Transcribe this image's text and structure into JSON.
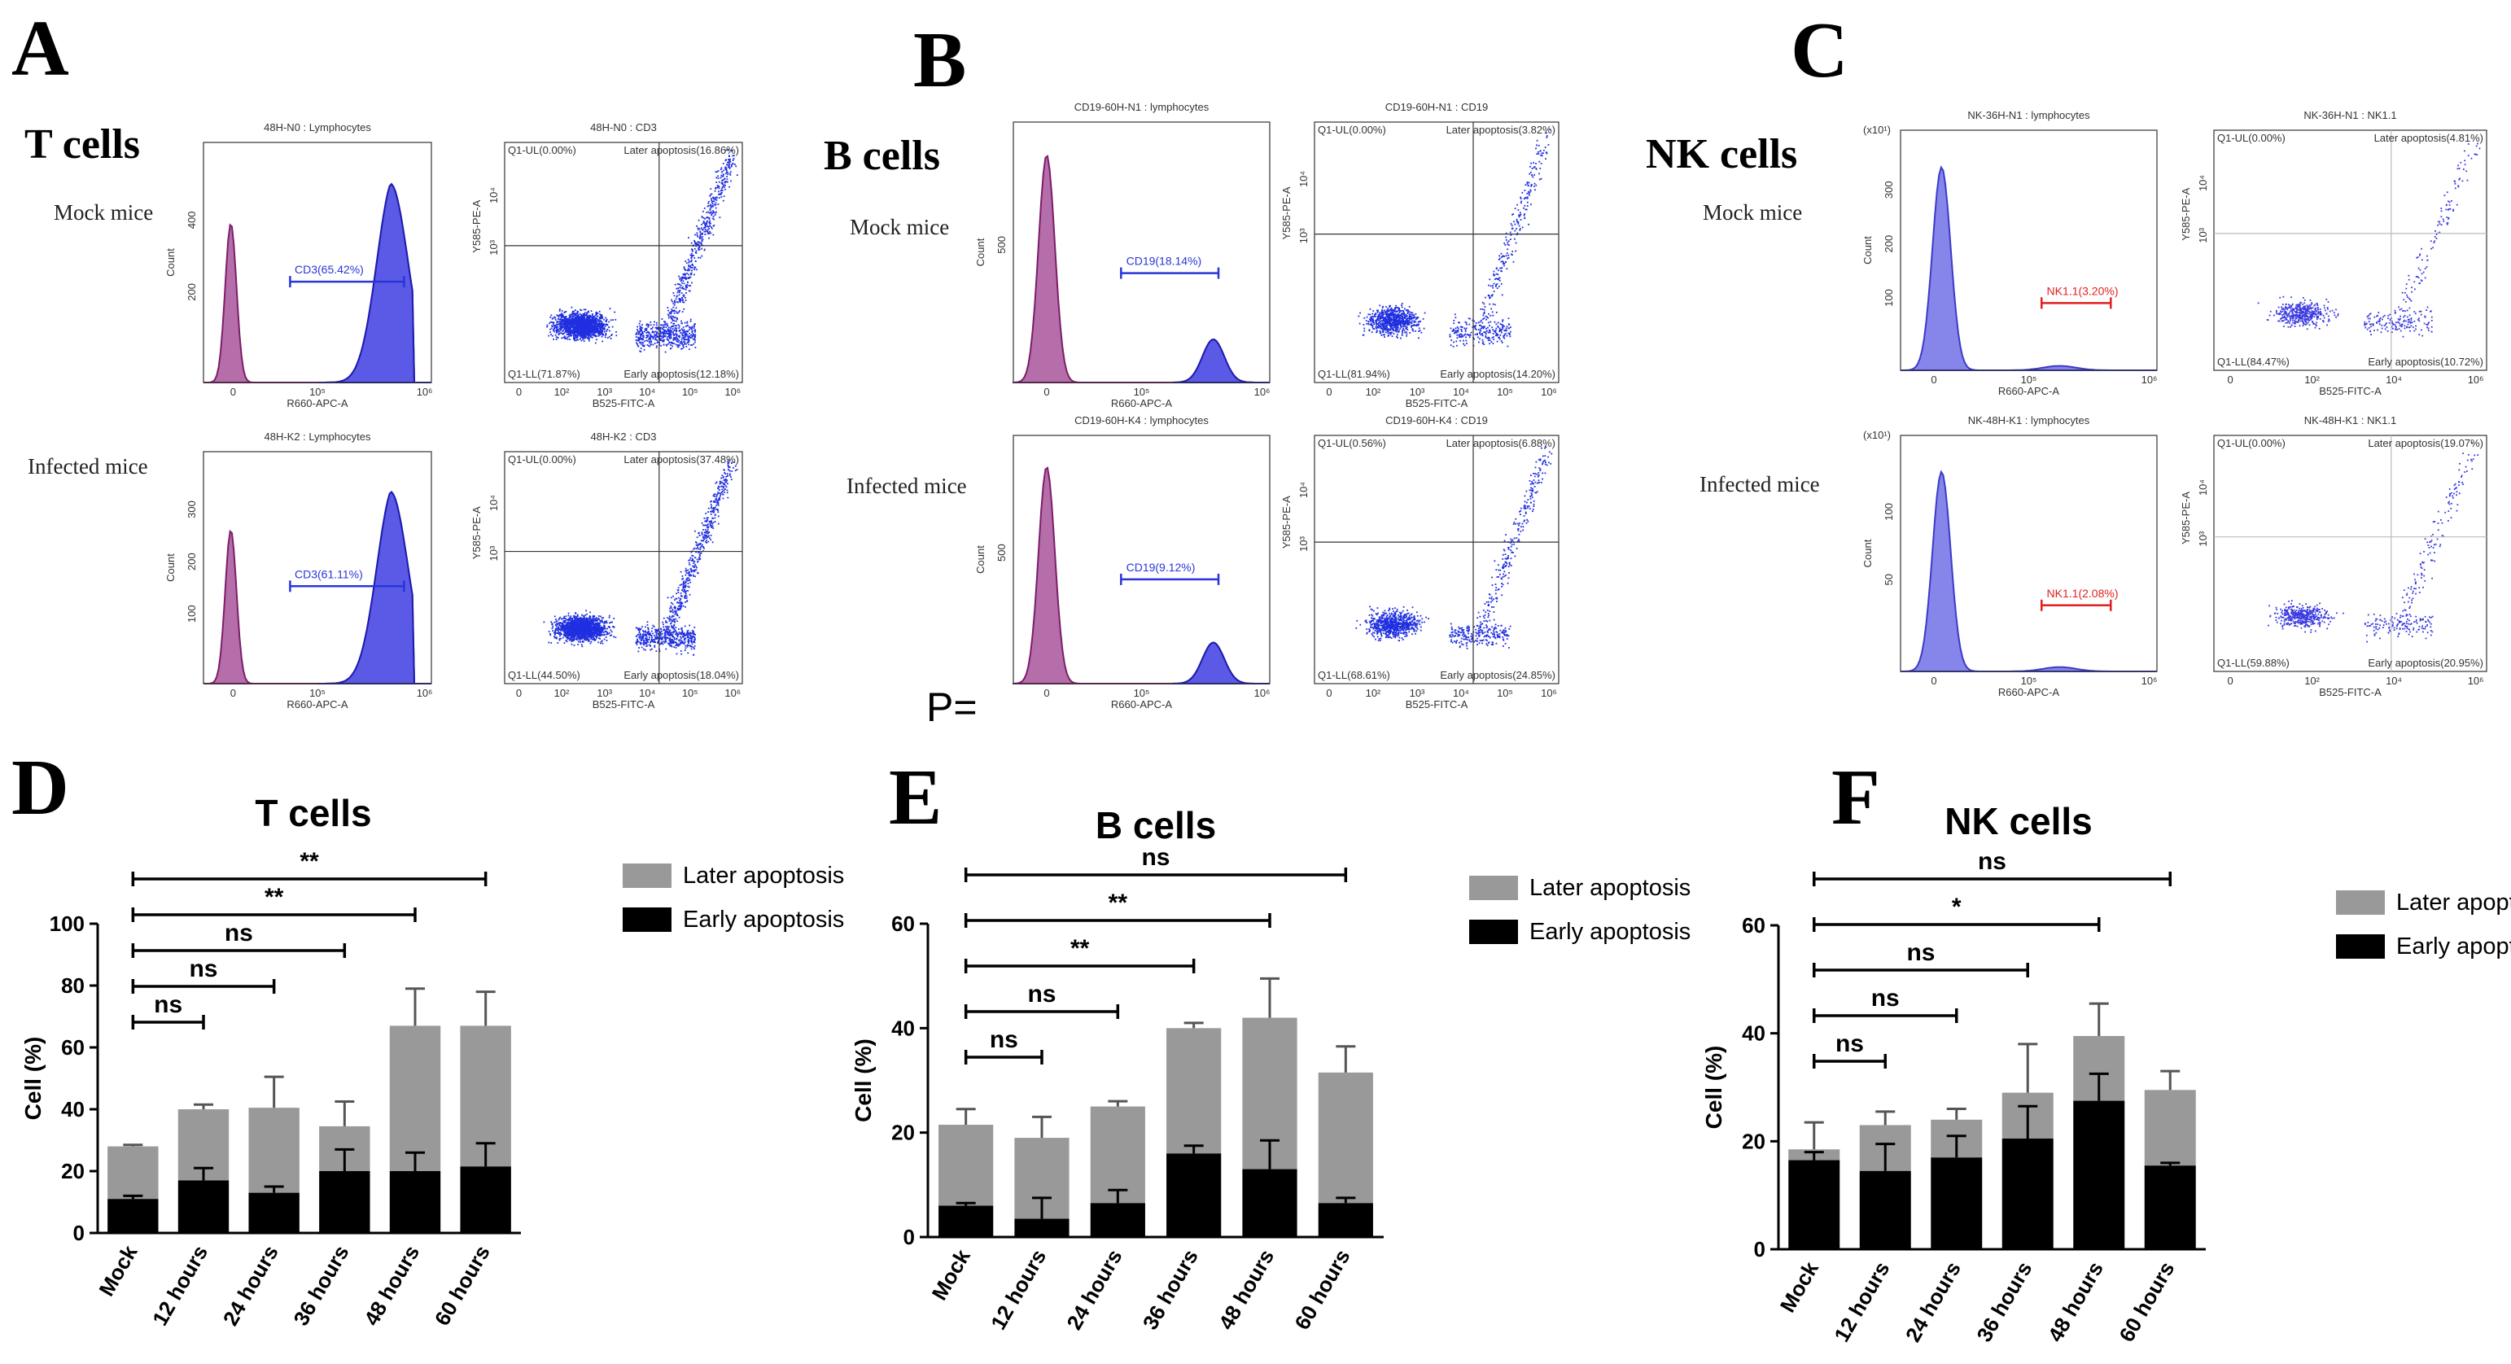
{
  "panel_labels": [
    "A",
    "B",
    "C",
    "D",
    "E",
    "F"
  ],
  "flow_titles": [
    "T cells",
    "B cells",
    "NK cells"
  ],
  "group_labels": [
    "Mock mice",
    "Infected mice"
  ],
  "stray_text": "P=",
  "flow": [
    {
      "cell": "T cells",
      "rows": [
        {
          "hist": {
            "title": "48H-N0 : Lymphocytes",
            "ylabel": "Count",
            "xlabel": "R660-APC-A",
            "gate": "CD3(65.42%)",
            "yticks": [
              "400",
              "200"
            ],
            "xticks": [
              "0",
              "10⁵",
              "10⁶"
            ]
          },
          "dot": {
            "title": "48H-N0 : CD3",
            "ylabel": "Y585-PE-A",
            "xlabel": "B525-FITC-A",
            "ul": "Q1-UL(0.00%)",
            "ur": "Later apoptosis(16.86%)",
            "ll": "Q1-LL(71.87%)",
            "lr": "Early apoptosis(12.18%)",
            "yticks": [
              "10⁴",
              "10³"
            ],
            "xticks": [
              "0",
              "10²",
              "10³",
              "10⁴",
              "10⁵",
              "10⁶"
            ]
          }
        },
        {
          "hist": {
            "title": "48H-K2 : Lymphocytes",
            "ylabel": "Count",
            "xlabel": "R660-APC-A",
            "gate": "CD3(61.11%)",
            "yticks": [
              "300",
              "200",
              "100"
            ],
            "xticks": [
              "0",
              "10⁵",
              "10⁶"
            ]
          },
          "dot": {
            "title": "48H-K2 : CD3",
            "ylabel": "Y585-PE-A",
            "xlabel": "B525-FITC-A",
            "ul": "Q1-UL(0.00%)",
            "ur": "Later apoptosis(37.48%)",
            "ll": "Q1-LL(44.50%)",
            "lr": "Early apoptosis(18.04%)",
            "yticks": [
              "10⁴",
              "10³"
            ],
            "xticks": [
              "0",
              "10²",
              "10³",
              "10⁴",
              "10⁵",
              "10⁶"
            ]
          }
        }
      ]
    },
    {
      "cell": "B cells",
      "rows": [
        {
          "hist": {
            "title": "CD19-60H-N1 : lymphocytes",
            "ylabel": "Count",
            "xlabel": "R660-APC-A",
            "gate": "CD19(18.14%)",
            "yticks": [
              "500"
            ],
            "xticks": [
              "0",
              "10⁵",
              "10⁶"
            ]
          },
          "dot": {
            "title": "CD19-60H-N1 : CD19",
            "ylabel": "Y585-PE-A",
            "xlabel": "B525-FITC-A",
            "ul": "Q1-UL(0.00%)",
            "ur": "Later apoptosis(3.82%)",
            "ll": "Q1-LL(81.94%)",
            "lr": "Early apoptosis(14.20%)",
            "yticks": [
              "10⁴",
              "10³"
            ],
            "xticks": [
              "0",
              "10²",
              "10³",
              "10⁴",
              "10⁵",
              "10⁶"
            ]
          }
        },
        {
          "hist": {
            "title": "CD19-60H-K4 : lymphocytes",
            "ylabel": "Count",
            "xlabel": "R660-APC-A",
            "gate": "CD19(9.12%)",
            "yticks": [
              "500"
            ],
            "xticks": [
              "0",
              "10⁵",
              "10⁶"
            ]
          },
          "dot": {
            "title": "CD19-60H-K4 : CD19",
            "ylabel": "Y585-PE-A",
            "xlabel": "B525-FITC-A",
            "ul": "Q1-UL(0.56%)",
            "ur": "Later apoptosis(6.88%)",
            "ll": "Q1-LL(68.61%)",
            "lr": "Early apoptosis(24.85%)",
            "yticks": [
              "10⁴",
              "10³"
            ],
            "xticks": [
              "0",
              "10²",
              "10³",
              "10⁴",
              "10⁵",
              "10⁶"
            ]
          }
        }
      ]
    },
    {
      "cell": "NK cells",
      "rows": [
        {
          "hist": {
            "title": "NK-36H-N1 : lymphocytes",
            "ylabel": "Count",
            "xlabel": "R660-APC-A",
            "gate": "NK1.1(3.20%)",
            "unit": "(x10¹)",
            "yticks": [
              "300",
              "200",
              "100"
            ],
            "xticks": [
              "0",
              "10⁵",
              "10⁶"
            ]
          },
          "dot": {
            "title": "NK-36H-N1 : NK1.1",
            "ylabel": "Y585-PE-A",
            "xlabel": "B525-FITC-A",
            "ul": "Q1-UL(0.00%)",
            "ur": "Later apoptosis(4.81%)",
            "ll": "Q1-LL(84.47%)",
            "lr": "Early apoptosis(10.72%)",
            "yticks": [
              "10⁴",
              "10³"
            ],
            "xticks": [
              "0",
              "10²",
              "10⁴",
              "10⁶"
            ]
          }
        },
        {
          "hist": {
            "title": "NK-48H-K1 : lymphocytes",
            "ylabel": "Count",
            "xlabel": "R660-APC-A",
            "gate": "NK1.1(2.08%)",
            "unit": "(x10¹)",
            "yticks": [
              "100",
              "50"
            ],
            "xticks": [
              "0",
              "10⁵",
              "10⁶"
            ]
          },
          "dot": {
            "title": "NK-48H-K1 : NK1.1",
            "ylabel": "Y585-PE-A",
            "xlabel": "B525-FITC-A",
            "ul": "Q1-UL(0.00%)",
            "ur": "Later apoptosis(19.07%)",
            "ll": "Q1-LL(59.88%)",
            "lr": "Early apoptosis(20.95%)",
            "yticks": [
              "10⁴",
              "10³"
            ],
            "xticks": [
              "0",
              "10²",
              "10⁴",
              "10⁶"
            ]
          }
        }
      ]
    }
  ],
  "chart_data": [
    {
      "panel": "D",
      "type": "bar",
      "stacked": true,
      "title": "T cells",
      "ylabel": "Cell (%)",
      "ylim": [
        0,
        100
      ],
      "yticks": [
        0,
        20,
        40,
        60,
        80,
        100
      ],
      "categories": [
        "Mock",
        "12 hours",
        "24 hours",
        "36 hours",
        "48 hours",
        "60 hours"
      ],
      "series": [
        {
          "name": "Early apoptosis",
          "color": "#000000",
          "values": [
            11,
            17,
            13,
            20,
            20,
            21.5
          ],
          "errors": [
            1,
            4,
            2,
            7,
            6,
            7.5
          ]
        },
        {
          "name": "Later apoptosis",
          "color": "#999999",
          "values": [
            17,
            23,
            27.5,
            14.5,
            47,
            45.5
          ],
          "errors": [
            0.5,
            1.5,
            10,
            8,
            12,
            11
          ]
        }
      ],
      "comparisons": [
        {
          "from": "Mock",
          "to": "12 hours",
          "label": "ns"
        },
        {
          "from": "Mock",
          "to": "24 hours",
          "label": "ns"
        },
        {
          "from": "Mock",
          "to": "36 hours",
          "label": "ns"
        },
        {
          "from": "Mock",
          "to": "48 hours",
          "label": "**"
        },
        {
          "from": "Mock",
          "to": "60 hours",
          "label": "**"
        }
      ]
    },
    {
      "panel": "E",
      "type": "bar",
      "stacked": true,
      "title": "B cells",
      "ylabel": "Cell (%)",
      "ylim": [
        0,
        60
      ],
      "yticks": [
        0,
        20,
        40,
        60
      ],
      "categories": [
        "Mock",
        "12 hours",
        "24 hours",
        "36 hours",
        "48 hours",
        "60 hours"
      ],
      "series": [
        {
          "name": "Early apoptosis",
          "color": "#000000",
          "values": [
            6,
            3.5,
            6.5,
            16,
            13,
            6.5
          ],
          "errors": [
            0.5,
            4,
            2.5,
            1.5,
            5.5,
            1
          ]
        },
        {
          "name": "Later apoptosis",
          "color": "#999999",
          "values": [
            15.5,
            15.5,
            18.5,
            24,
            29,
            25
          ],
          "errors": [
            3,
            4,
            1,
            1,
            7.5,
            5
          ]
        }
      ],
      "comparisons": [
        {
          "from": "Mock",
          "to": "12 hours",
          "label": "ns"
        },
        {
          "from": "Mock",
          "to": "24 hours",
          "label": "ns"
        },
        {
          "from": "Mock",
          "to": "36 hours",
          "label": "**"
        },
        {
          "from": "Mock",
          "to": "48 hours",
          "label": "**"
        },
        {
          "from": "Mock",
          "to": "60 hours",
          "label": "ns"
        }
      ]
    },
    {
      "panel": "F",
      "type": "bar",
      "stacked": true,
      "title": "NK cells",
      "ylabel": "Cell (%)",
      "ylim": [
        0,
        60
      ],
      "yticks": [
        0,
        20,
        40,
        60
      ],
      "categories": [
        "Mock",
        "12 hours",
        "24 hours",
        "36 hours",
        "48 hours",
        "60 hours"
      ],
      "series": [
        {
          "name": "Early apoptosis",
          "color": "#000000",
          "values": [
            16.5,
            14.5,
            17,
            20.5,
            27.5,
            15.5
          ],
          "errors": [
            1.5,
            5,
            4,
            6,
            5,
            0.5
          ]
        },
        {
          "name": "Later apoptosis",
          "color": "#999999",
          "values": [
            2,
            8.5,
            7,
            8.5,
            12,
            14
          ],
          "errors": [
            5,
            2.5,
            2,
            9,
            6,
            3.5
          ]
        }
      ],
      "comparisons": [
        {
          "from": "Mock",
          "to": "12 hours",
          "label": "ns"
        },
        {
          "from": "Mock",
          "to": "24 hours",
          "label": "ns"
        },
        {
          "from": "Mock",
          "to": "36 hours",
          "label": "ns"
        },
        {
          "from": "Mock",
          "to": "48 hours",
          "label": "*"
        },
        {
          "from": "Mock",
          "to": "60 hours",
          "label": "ns"
        }
      ]
    }
  ]
}
